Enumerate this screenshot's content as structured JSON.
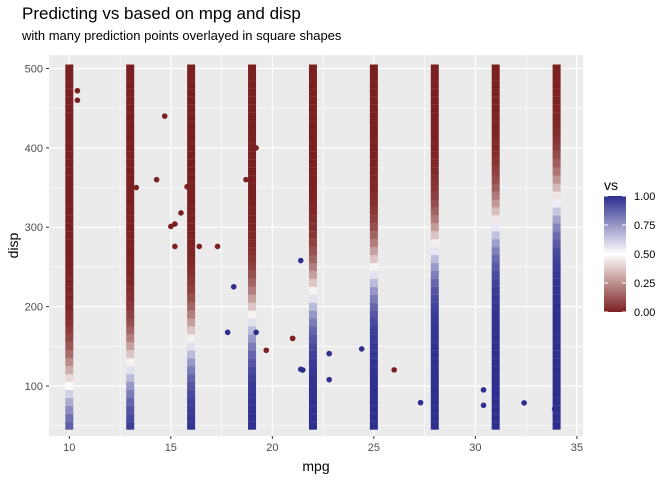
{
  "chart_data": {
    "type": "scatter",
    "title": "Predicting vs based on mpg and disp",
    "subtitle": "with many prediction points overlayed in square shapes",
    "xlabel": "mpg",
    "ylabel": "disp",
    "xlim": [
      9.0,
      35.3
    ],
    "ylim": [
      37,
      517
    ],
    "x_ticks": [
      10,
      15,
      20,
      25,
      30,
      35
    ],
    "y_ticks": [
      100,
      200,
      300,
      400,
      500
    ],
    "grid": true,
    "legend": {
      "title": "vs",
      "position": "right",
      "ticks": [
        0.0,
        0.25,
        0.5,
        0.75,
        1.0
      ],
      "tick_labels": [
        "0.00",
        "0.25",
        "0.50",
        "0.75",
        "1.00"
      ]
    },
    "colors": {
      "low": "#7b2020",
      "mid": "#ffffff",
      "high": "#2e2e8f",
      "panel": "#ebebeb",
      "grid": "#ffffff"
    },
    "prediction_grid": {
      "shape": "square",
      "mpg_values": [
        10,
        13,
        16,
        19,
        22,
        25,
        28,
        31,
        34
      ],
      "disp_values": [
        50,
        60,
        70,
        80,
        90,
        100,
        110,
        120,
        130,
        140,
        150,
        160,
        170,
        180,
        190,
        200,
        210,
        220,
        230,
        240,
        250,
        260,
        270,
        280,
        290,
        300,
        310,
        320,
        330,
        340,
        350,
        360,
        370,
        380,
        390,
        400,
        410,
        420,
        430,
        440,
        450,
        460,
        470,
        480,
        490,
        500
      ],
      "fitted_boundary_disp_at_vs_0.5": [
        101,
        127,
        157,
        187,
        217,
        247,
        276,
        305,
        334
      ]
    },
    "observed_points": [
      {
        "mpg": 21.0,
        "disp": 160,
        "vs": 0
      },
      {
        "mpg": 21.0,
        "disp": 160,
        "vs": 0
      },
      {
        "mpg": 22.8,
        "disp": 108,
        "vs": 1
      },
      {
        "mpg": 21.4,
        "disp": 258,
        "vs": 1
      },
      {
        "mpg": 18.7,
        "disp": 360,
        "vs": 0
      },
      {
        "mpg": 18.1,
        "disp": 225,
        "vs": 1
      },
      {
        "mpg": 14.3,
        "disp": 360,
        "vs": 0
      },
      {
        "mpg": 24.4,
        "disp": 146.7,
        "vs": 1
      },
      {
        "mpg": 22.8,
        "disp": 140.8,
        "vs": 1
      },
      {
        "mpg": 19.2,
        "disp": 167.6,
        "vs": 1
      },
      {
        "mpg": 17.8,
        "disp": 167.6,
        "vs": 1
      },
      {
        "mpg": 16.4,
        "disp": 275.8,
        "vs": 0
      },
      {
        "mpg": 17.3,
        "disp": 275.8,
        "vs": 0
      },
      {
        "mpg": 15.2,
        "disp": 275.8,
        "vs": 0
      },
      {
        "mpg": 10.4,
        "disp": 472,
        "vs": 0
      },
      {
        "mpg": 10.4,
        "disp": 460,
        "vs": 0
      },
      {
        "mpg": 14.7,
        "disp": 440,
        "vs": 0
      },
      {
        "mpg": 32.4,
        "disp": 78.7,
        "vs": 1
      },
      {
        "mpg": 30.4,
        "disp": 75.7,
        "vs": 1
      },
      {
        "mpg": 33.9,
        "disp": 71.1,
        "vs": 1
      },
      {
        "mpg": 21.5,
        "disp": 120.1,
        "vs": 1
      },
      {
        "mpg": 15.5,
        "disp": 318,
        "vs": 0
      },
      {
        "mpg": 15.2,
        "disp": 304,
        "vs": 0
      },
      {
        "mpg": 13.3,
        "disp": 350,
        "vs": 0
      },
      {
        "mpg": 19.2,
        "disp": 400,
        "vs": 0
      },
      {
        "mpg": 27.3,
        "disp": 79,
        "vs": 1
      },
      {
        "mpg": 26.0,
        "disp": 120.3,
        "vs": 0
      },
      {
        "mpg": 30.4,
        "disp": 95.1,
        "vs": 1
      },
      {
        "mpg": 15.8,
        "disp": 351,
        "vs": 0
      },
      {
        "mpg": 19.7,
        "disp": 145,
        "vs": 0
      },
      {
        "mpg": 15.0,
        "disp": 301,
        "vs": 0
      },
      {
        "mpg": 21.4,
        "disp": 121,
        "vs": 1
      }
    ]
  }
}
